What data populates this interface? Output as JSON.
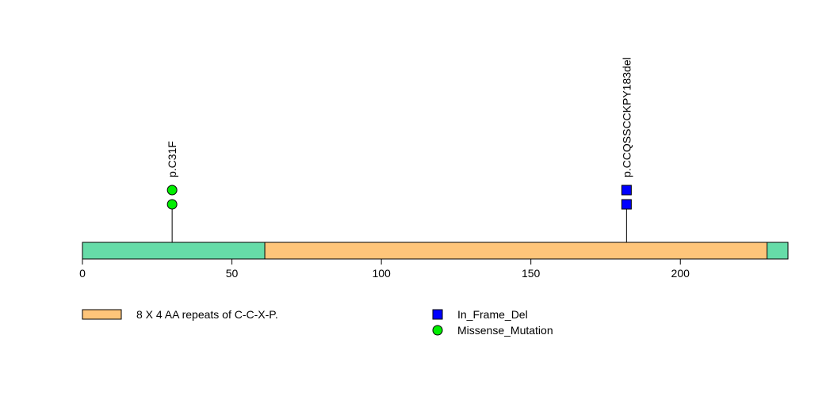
{
  "chart_data": {
    "type": "lollipop",
    "protein_length": 236,
    "xlim": [
      0,
      236
    ],
    "x_ticks": [
      0,
      50,
      100,
      150,
      200
    ],
    "x_tick_labels": [
      "0",
      "50",
      "100",
      "150",
      "200"
    ],
    "protein_color": "#66dca8",
    "domains": [
      {
        "label": "8 X 4 AA repeats of C-C-X-P.",
        "start": 61,
        "end": 229,
        "color": "#fec57a"
      }
    ],
    "mutations": [
      {
        "position": 30,
        "label": "p.C31F",
        "type": "Missense_Mutation",
        "count": 2
      },
      {
        "position": 182,
        "label": "p.CCQSSCCKPY183del",
        "type": "In_Frame_Del",
        "count": 2
      }
    ],
    "mutation_types": [
      {
        "name": "In_Frame_Del",
        "shape": "square",
        "color": "#0000ff"
      },
      {
        "name": "Missense_Mutation",
        "shape": "circle",
        "color": "#00ee00"
      }
    ]
  }
}
